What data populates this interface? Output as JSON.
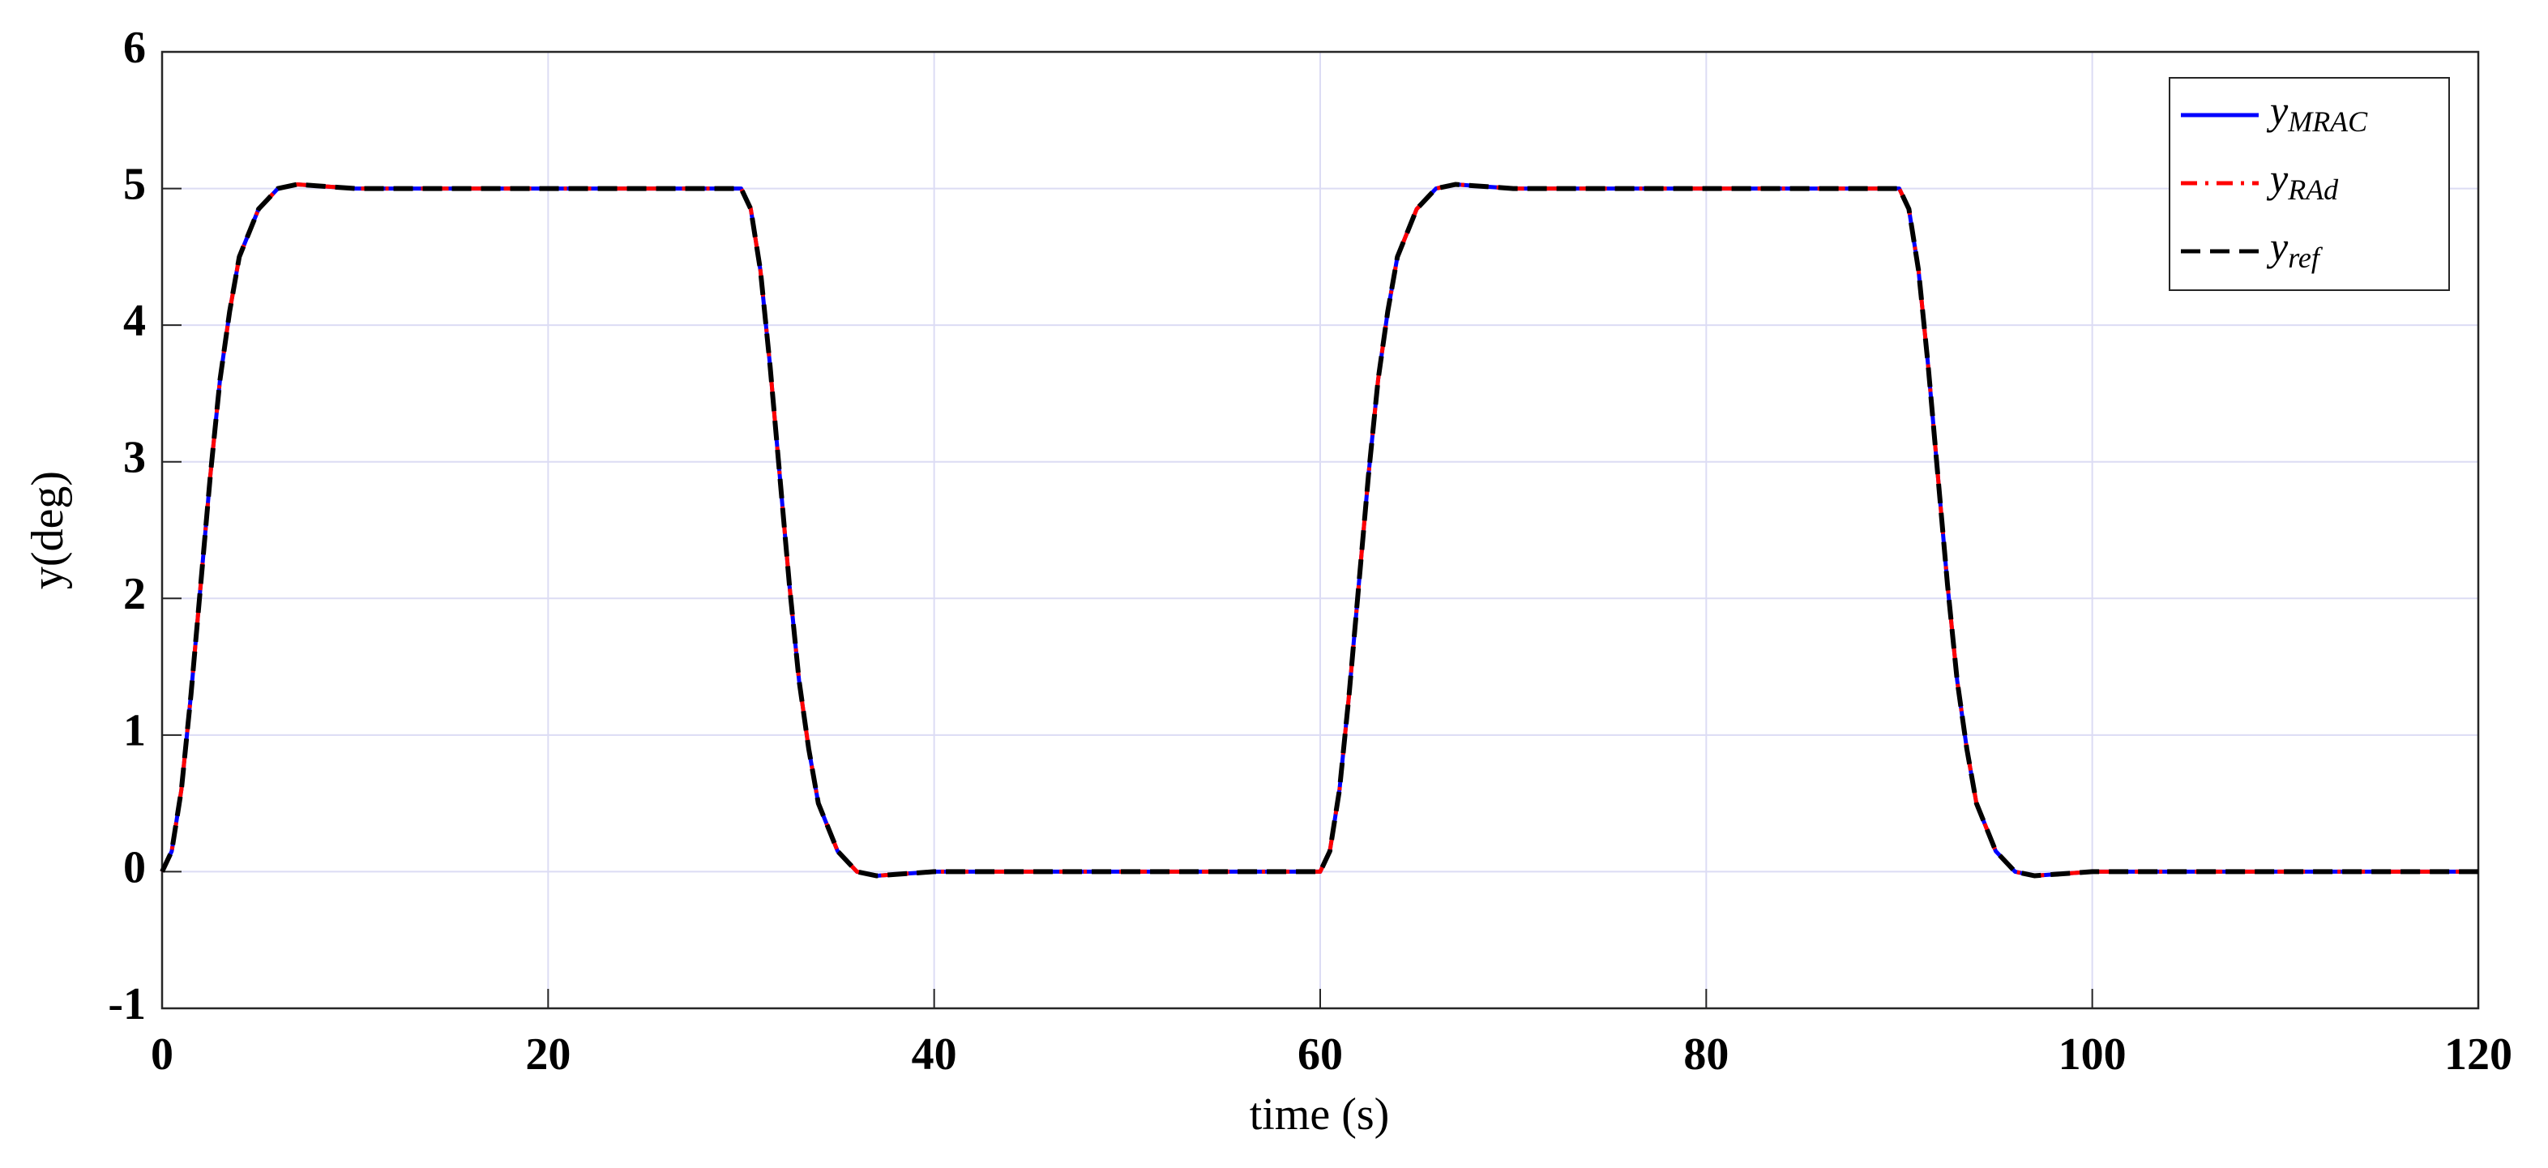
{
  "chart_data": {
    "type": "line",
    "xlabel": "time (s)",
    "ylabel": "y(deg)",
    "xlim": [
      0,
      120
    ],
    "ylim": [
      -1,
      6
    ],
    "xticks": [
      0,
      20,
      40,
      60,
      80,
      100,
      120
    ],
    "yticks": [
      -1,
      0,
      1,
      2,
      3,
      4,
      5,
      6
    ],
    "grid": true,
    "legend": "upper right",
    "x": [
      0,
      0.5,
      1,
      1.5,
      2,
      2.5,
      3,
      3.5,
      4,
      5,
      6,
      7,
      8,
      10,
      15,
      20,
      25,
      30,
      30.5,
      31,
      31.5,
      32,
      32.5,
      33,
      33.5,
      34,
      35,
      36,
      37,
      38,
      40,
      45,
      50,
      55,
      60,
      60.5,
      61,
      61.5,
      62,
      62.5,
      63,
      63.5,
      64,
      65,
      66,
      67,
      68,
      70,
      75,
      80,
      85,
      90,
      90.5,
      91,
      91.5,
      92,
      92.5,
      93,
      93.5,
      94,
      95,
      96,
      97,
      98,
      100,
      105,
      110,
      115,
      120
    ],
    "series": [
      {
        "name": "yMRAC",
        "color": "#0000ff",
        "style": "solid",
        "values": [
          0,
          0.15,
          0.6,
          1.3,
          2.1,
          2.9,
          3.6,
          4.1,
          4.5,
          4.85,
          5,
          5.03,
          5.02,
          5,
          5,
          5,
          5,
          5,
          4.85,
          4.4,
          3.7,
          2.9,
          2.1,
          1.4,
          0.9,
          0.5,
          0.15,
          0,
          -0.03,
          -0.02,
          0,
          0,
          0,
          0,
          0,
          0.15,
          0.6,
          1.3,
          2.1,
          2.9,
          3.6,
          4.1,
          4.5,
          4.85,
          5,
          5.03,
          5.02,
          5,
          5,
          5,
          5,
          5,
          4.85,
          4.4,
          3.7,
          2.9,
          2.1,
          1.4,
          0.9,
          0.5,
          0.15,
          0,
          -0.03,
          -0.02,
          0,
          0,
          0,
          0,
          0
        ]
      },
      {
        "name": "yRAd",
        "color": "#ff0000",
        "style": "dashdot",
        "values": [
          0,
          0.15,
          0.6,
          1.3,
          2.1,
          2.9,
          3.6,
          4.1,
          4.5,
          4.85,
          5,
          5.03,
          5.02,
          5,
          5,
          5,
          5,
          5,
          4.85,
          4.4,
          3.7,
          2.9,
          2.1,
          1.4,
          0.9,
          0.5,
          0.15,
          0,
          -0.03,
          -0.02,
          0,
          0,
          0,
          0,
          0,
          0.15,
          0.6,
          1.3,
          2.1,
          2.9,
          3.6,
          4.1,
          4.5,
          4.85,
          5,
          5.03,
          5.02,
          5,
          5,
          5,
          5,
          5,
          4.85,
          4.4,
          3.7,
          2.9,
          2.1,
          1.4,
          0.9,
          0.5,
          0.15,
          0,
          -0.03,
          -0.02,
          0,
          0,
          0,
          0,
          0
        ]
      },
      {
        "name": "yref",
        "color": "#000000",
        "style": "dashed",
        "values": [
          0,
          0.15,
          0.6,
          1.3,
          2.1,
          2.9,
          3.6,
          4.1,
          4.5,
          4.85,
          5,
          5.03,
          5.02,
          5,
          5,
          5,
          5,
          5,
          4.85,
          4.4,
          3.7,
          2.9,
          2.1,
          1.4,
          0.9,
          0.5,
          0.15,
          0,
          -0.03,
          -0.02,
          0,
          0,
          0,
          0,
          0,
          0.15,
          0.6,
          1.3,
          2.1,
          2.9,
          3.6,
          4.1,
          4.5,
          4.85,
          5,
          5.03,
          5.02,
          5,
          5,
          5,
          5,
          5,
          4.85,
          4.4,
          3.7,
          2.9,
          2.1,
          1.4,
          0.9,
          0.5,
          0.15,
          0,
          -0.03,
          -0.02,
          0,
          0,
          0,
          0,
          0
        ]
      }
    ]
  }
}
